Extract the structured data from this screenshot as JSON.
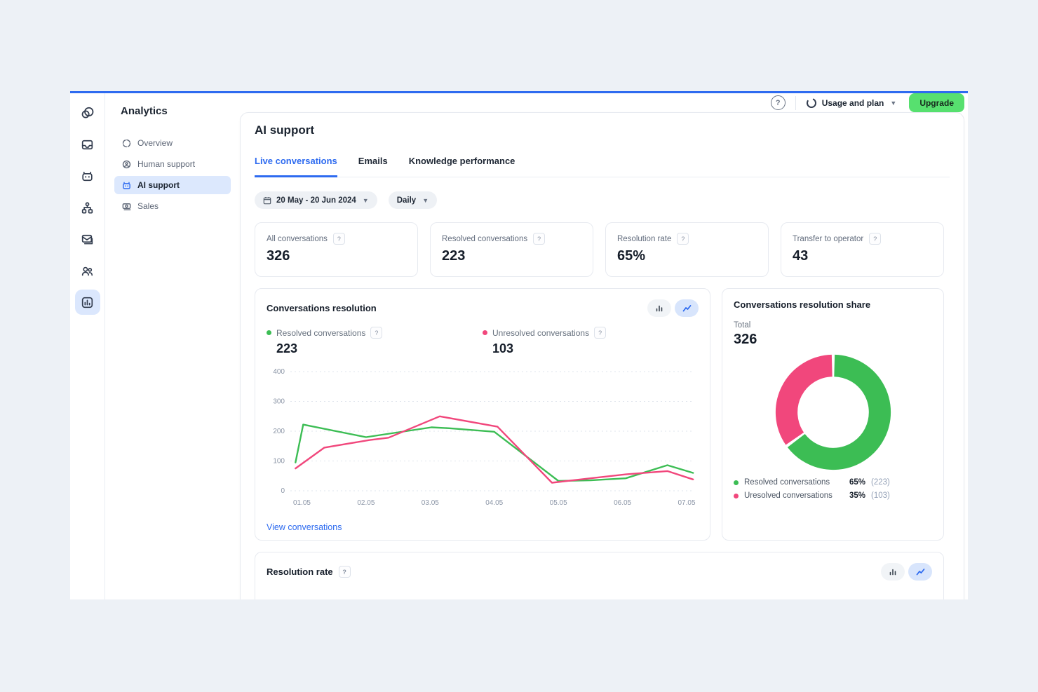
{
  "ui": {
    "q": "?",
    "accent_blue": "#2E6BF0",
    "chart_green": "#3CBD54",
    "chart_pink": "#F1477C",
    "upgrade_green": "#57E06F"
  },
  "header": {
    "title": "Analytics",
    "usage_label": "Usage and plan",
    "upgrade_label": "Upgrade"
  },
  "rail_icons": [
    "logo",
    "inbox",
    "chatbot",
    "automation-flows",
    "mail",
    "contacts",
    "analytics"
  ],
  "nav": {
    "items": [
      {
        "label": "Overview",
        "icon": "overview-circle",
        "active": false
      },
      {
        "label": "Human support",
        "icon": "human-support",
        "active": false
      },
      {
        "label": "AI support",
        "icon": "robot",
        "active": true
      },
      {
        "label": "Sales",
        "icon": "banknote",
        "active": false
      }
    ]
  },
  "main": {
    "title": "AI support",
    "tabs": [
      {
        "label": "Live conversations",
        "active": true
      },
      {
        "label": "Emails",
        "active": false
      },
      {
        "label": "Knowledge performance",
        "active": false
      }
    ],
    "filters": {
      "date_range": "20 May - 20 Jun 2024",
      "period": "Daily"
    },
    "stats": [
      {
        "label": "All conversations",
        "value": "326"
      },
      {
        "label": "Resolved conversations",
        "value": "223"
      },
      {
        "label": "Resolution rate",
        "value": "65%"
      },
      {
        "label": "Transfer to operator",
        "value": "43"
      }
    ],
    "resolution_card": {
      "title": "Conversations resolution",
      "legend": [
        {
          "label": "Resolved conversations",
          "value": "223"
        },
        {
          "label": "Unresolved conversations",
          "value": "103"
        }
      ],
      "link": "View conversations"
    },
    "share_card": {
      "title": "Conversations resolution share",
      "total_label": "Total",
      "total_value": "326",
      "legend": [
        {
          "label": "Resolved conversations",
          "pct": "65%",
          "count": "(223)"
        },
        {
          "label": "Uresolved conversations",
          "pct": "35%",
          "count": "(103)"
        }
      ]
    },
    "rate_card": {
      "title": "Resolution rate"
    }
  },
  "chart_data": [
    {
      "type": "line",
      "title": "Conversations resolution",
      "x_labels": [
        "01.05",
        "02.05",
        "03.05",
        "04.05",
        "05.05",
        "06.05",
        "07.05"
      ],
      "y_ticks": [
        0,
        100,
        200,
        300,
        400
      ],
      "y_range": [
        0,
        400
      ],
      "x_range": [
        0.82,
        7.12
      ],
      "grid": "dotted-horizontal",
      "legend_position": "top",
      "series": [
        {
          "name": "Resolved conversations",
          "color": "#3CBD54",
          "total": 223,
          "points": [
            [
              0.9,
              95
            ],
            [
              1.02,
              222
            ],
            [
              2.0,
              180
            ],
            [
              3.02,
              213
            ],
            [
              3.3,
              210
            ],
            [
              4.0,
              198
            ],
            [
              5.0,
              33
            ],
            [
              5.5,
              35
            ],
            [
              6.05,
              42
            ],
            [
              6.7,
              86
            ],
            [
              7.1,
              60
            ]
          ]
        },
        {
          "name": "Unresolved conversations",
          "color": "#F1477C",
          "total": 103,
          "points": [
            [
              0.9,
              75
            ],
            [
              1.35,
              145
            ],
            [
              2.05,
              170
            ],
            [
              2.35,
              178
            ],
            [
              3.15,
              250
            ],
            [
              4.05,
              215
            ],
            [
              4.9,
              27
            ],
            [
              5.5,
              42
            ],
            [
              6.05,
              55
            ],
            [
              6.7,
              66
            ],
            [
              7.1,
              38
            ]
          ]
        }
      ]
    },
    {
      "type": "donut",
      "title": "Conversations resolution share",
      "total": 326,
      "slices": [
        {
          "label": "Resolved conversations",
          "pct": 65,
          "count": 223,
          "color": "#3CBD54"
        },
        {
          "label": "Uresolved conversations",
          "pct": 35,
          "count": 103,
          "color": "#F1477C"
        }
      ]
    }
  ]
}
